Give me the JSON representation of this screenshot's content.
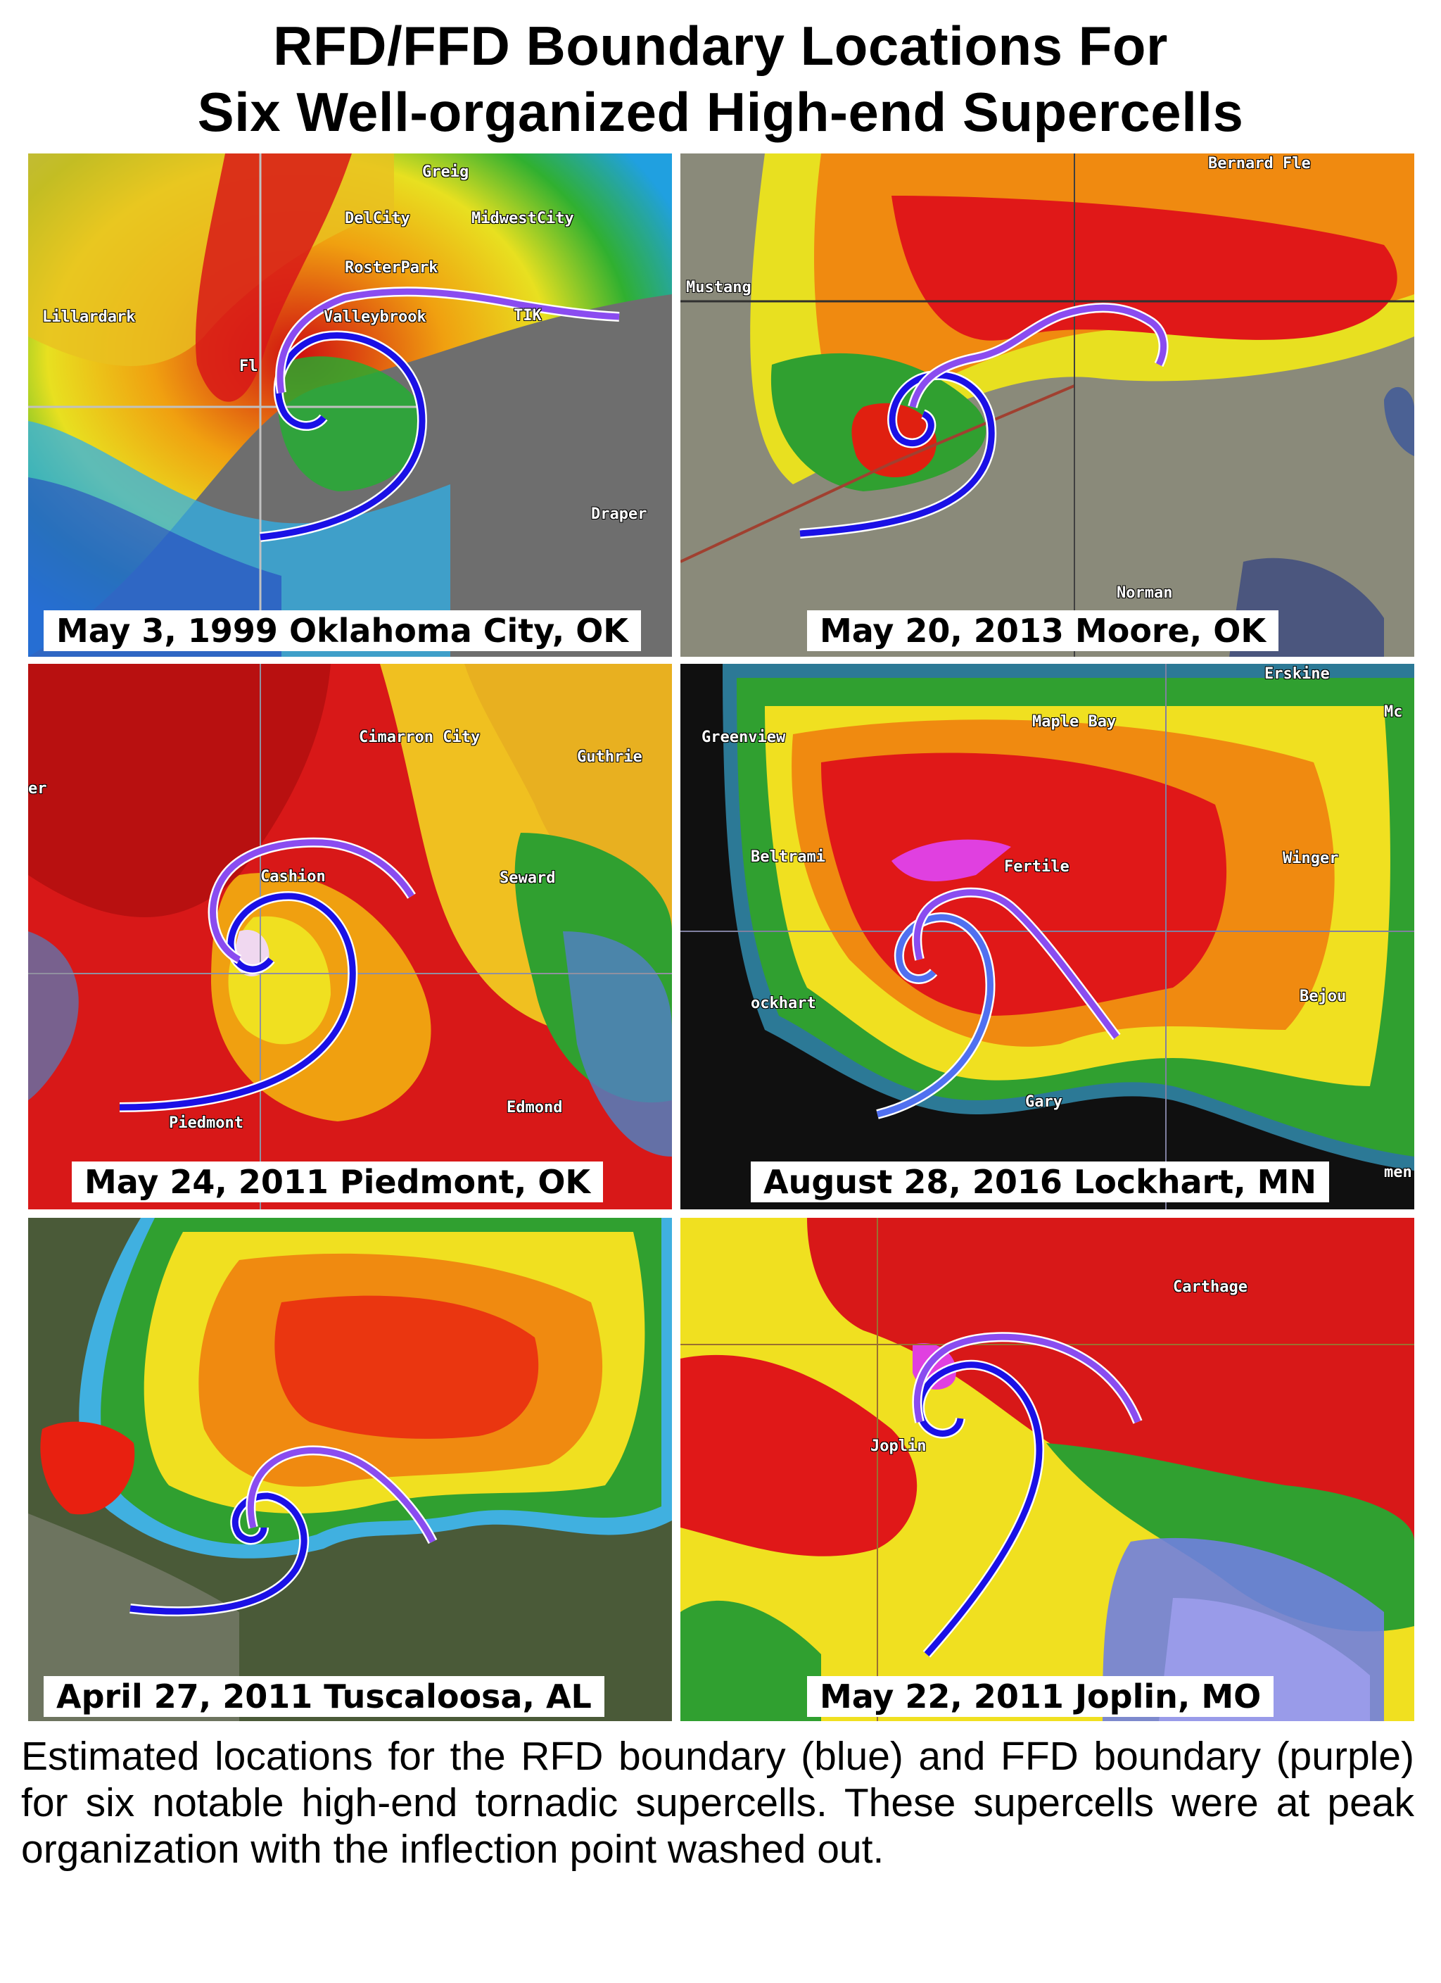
{
  "title": {
    "line1": "RFD/FFD Boundary Locations For",
    "line2": "Six Well-organized High-end Supercells"
  },
  "panels": [
    {
      "label": "May 3, 1999 Oklahoma City, OK",
      "places": [
        "Greig",
        "DelCity",
        "MidwestCity",
        "RosterPark",
        "Valleybrook",
        "Lillardark",
        "Fl",
        "TIK",
        "Draper"
      ]
    },
    {
      "label": "May 20, 2013 Moore, OK",
      "places": [
        "Mustang",
        "Norman",
        "Bernard Fle"
      ]
    },
    {
      "label": "May 24, 2011 Piedmont, OK",
      "places": [
        "Cimarron City",
        "Guthrie",
        "Cashion",
        "Seward",
        "Edmond",
        "Piedmont",
        "er"
      ]
    },
    {
      "label": "August 28, 2016 Lockhart, MN",
      "places": [
        "Erskine",
        "Mc",
        "Greenview",
        "Maple Bay",
        "Beltrami",
        "Fertile",
        "Winger",
        "ockhart",
        "Bejou",
        "Gary",
        "men"
      ]
    },
    {
      "label": "April 27, 2011 Tuscaloosa, AL",
      "places": []
    },
    {
      "label": "May 22, 2011 Joplin, MO",
      "places": [
        "Carthage",
        "Joplin"
      ]
    }
  ],
  "colors": {
    "rfd_boundary": "#1a10e6",
    "ffd_boundary": "#8a4cf0"
  },
  "caption": "Estimated locations for the RFD boundary (blue) and FFD boundary (purple) for six notable high-end tornadic supercells. These supercells were at peak organization with the inflection point washed out."
}
